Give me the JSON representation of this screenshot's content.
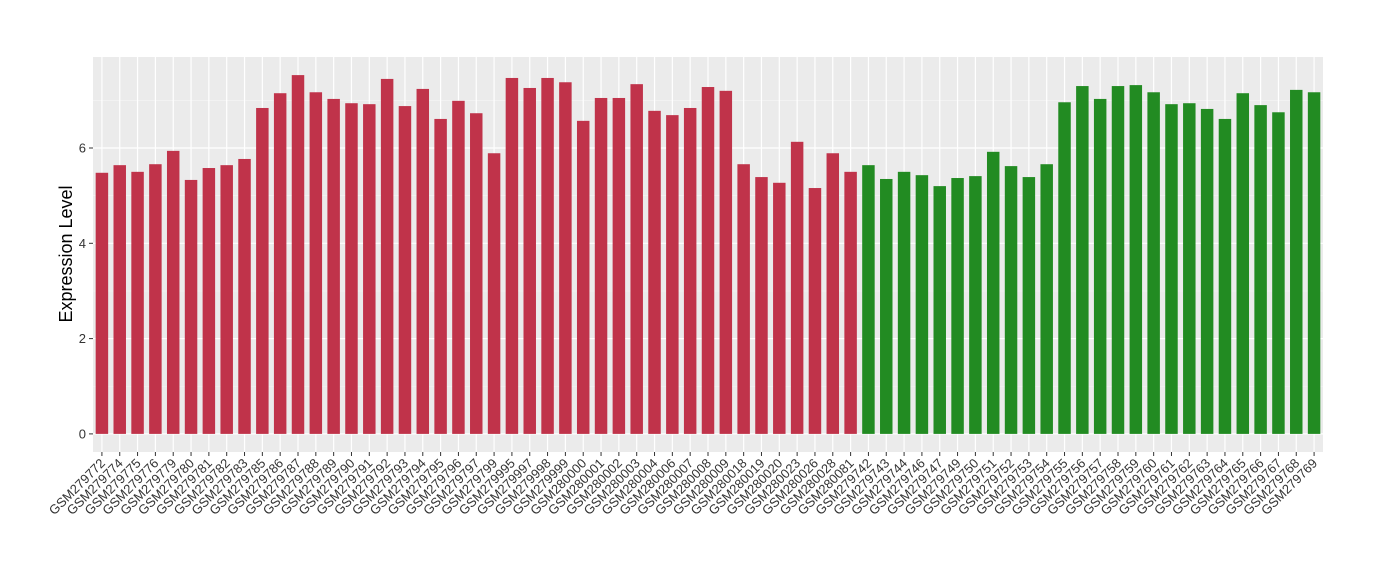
{
  "chart_data": {
    "type": "bar",
    "ylabel": "Expression Level",
    "categories": [
      "GSM279772",
      "GSM279774",
      "GSM279775",
      "GSM279776",
      "GSM279779",
      "GSM279780",
      "GSM279781",
      "GSM279782",
      "GSM279783",
      "GSM279785",
      "GSM279786",
      "GSM279787",
      "GSM279788",
      "GSM279789",
      "GSM279790",
      "GSM279791",
      "GSM279792",
      "GSM279793",
      "GSM279794",
      "GSM279795",
      "GSM279796",
      "GSM279797",
      "GSM279799",
      "GSM279995",
      "GSM279997",
      "GSM279998",
      "GSM279999",
      "GSM280000",
      "GSM280001",
      "GSM280002",
      "GSM280003",
      "GSM280004",
      "GSM280006",
      "GSM280007",
      "GSM280008",
      "GSM280009",
      "GSM280018",
      "GSM280019",
      "GSM280020",
      "GSM280023",
      "GSM280026",
      "GSM280028",
      "GSM280081",
      "GSM279742",
      "GSM279743",
      "GSM279744",
      "GSM279746",
      "GSM279747",
      "GSM279749",
      "GSM279750",
      "GSM279751",
      "GSM279752",
      "GSM279753",
      "GSM279754",
      "GSM279755",
      "GSM279756",
      "GSM279757",
      "GSM279758",
      "GSM279759",
      "GSM279760",
      "GSM279761",
      "GSM279762",
      "GSM279763",
      "GSM279764",
      "GSM279765",
      "GSM279766",
      "GSM279767",
      "GSM279768",
      "GSM279769"
    ],
    "values": [
      5.48,
      5.64,
      5.5,
      5.66,
      5.94,
      5.33,
      5.58,
      5.64,
      5.77,
      6.84,
      7.15,
      7.53,
      7.17,
      7.03,
      6.94,
      6.92,
      7.45,
      6.88,
      7.24,
      6.61,
      6.99,
      6.73,
      5.89,
      7.47,
      7.26,
      7.47,
      7.38,
      6.57,
      7.05,
      7.05,
      7.34,
      6.78,
      6.69,
      6.84,
      7.28,
      7.2,
      5.66,
      5.39,
      5.27,
      6.13,
      5.16,
      5.89,
      5.5,
      5.64,
      5.35,
      5.5,
      5.43,
      5.2,
      5.37,
      5.41,
      5.92,
      5.62,
      5.39,
      5.66,
      6.96,
      7.3,
      7.03,
      7.3,
      7.32,
      7.17,
      6.92,
      6.94,
      6.82,
      6.61,
      7.15,
      6.9,
      6.75,
      7.22,
      7.17
    ],
    "colors": [
      "#c0334a",
      "#c0334a",
      "#c0334a",
      "#c0334a",
      "#c0334a",
      "#c0334a",
      "#c0334a",
      "#c0334a",
      "#c0334a",
      "#c0334a",
      "#c0334a",
      "#c0334a",
      "#c0334a",
      "#c0334a",
      "#c0334a",
      "#c0334a",
      "#c0334a",
      "#c0334a",
      "#c0334a",
      "#c0334a",
      "#c0334a",
      "#c0334a",
      "#c0334a",
      "#c0334a",
      "#c0334a",
      "#c0334a",
      "#c0334a",
      "#c0334a",
      "#c0334a",
      "#c0334a",
      "#c0334a",
      "#c0334a",
      "#c0334a",
      "#c0334a",
      "#c0334a",
      "#c0334a",
      "#c0334a",
      "#c0334a",
      "#c0334a",
      "#c0334a",
      "#c0334a",
      "#c0334a",
      "#c0334a",
      "#228b22",
      "#228b22",
      "#228b22",
      "#228b22",
      "#228b22",
      "#228b22",
      "#228b22",
      "#228b22",
      "#228b22",
      "#228b22",
      "#228b22",
      "#228b22",
      "#228b22",
      "#228b22",
      "#228b22",
      "#228b22",
      "#228b22",
      "#228b22",
      "#228b22",
      "#228b22",
      "#228b22",
      "#228b22",
      "#228b22",
      "#228b22",
      "#228b22",
      "#228b22"
    ],
    "ylim": [
      -0.38,
      7.91
    ],
    "yticks": [
      0,
      2,
      4,
      6
    ],
    "minor_yticks": [
      1,
      3,
      5,
      7
    ],
    "grid": true
  }
}
